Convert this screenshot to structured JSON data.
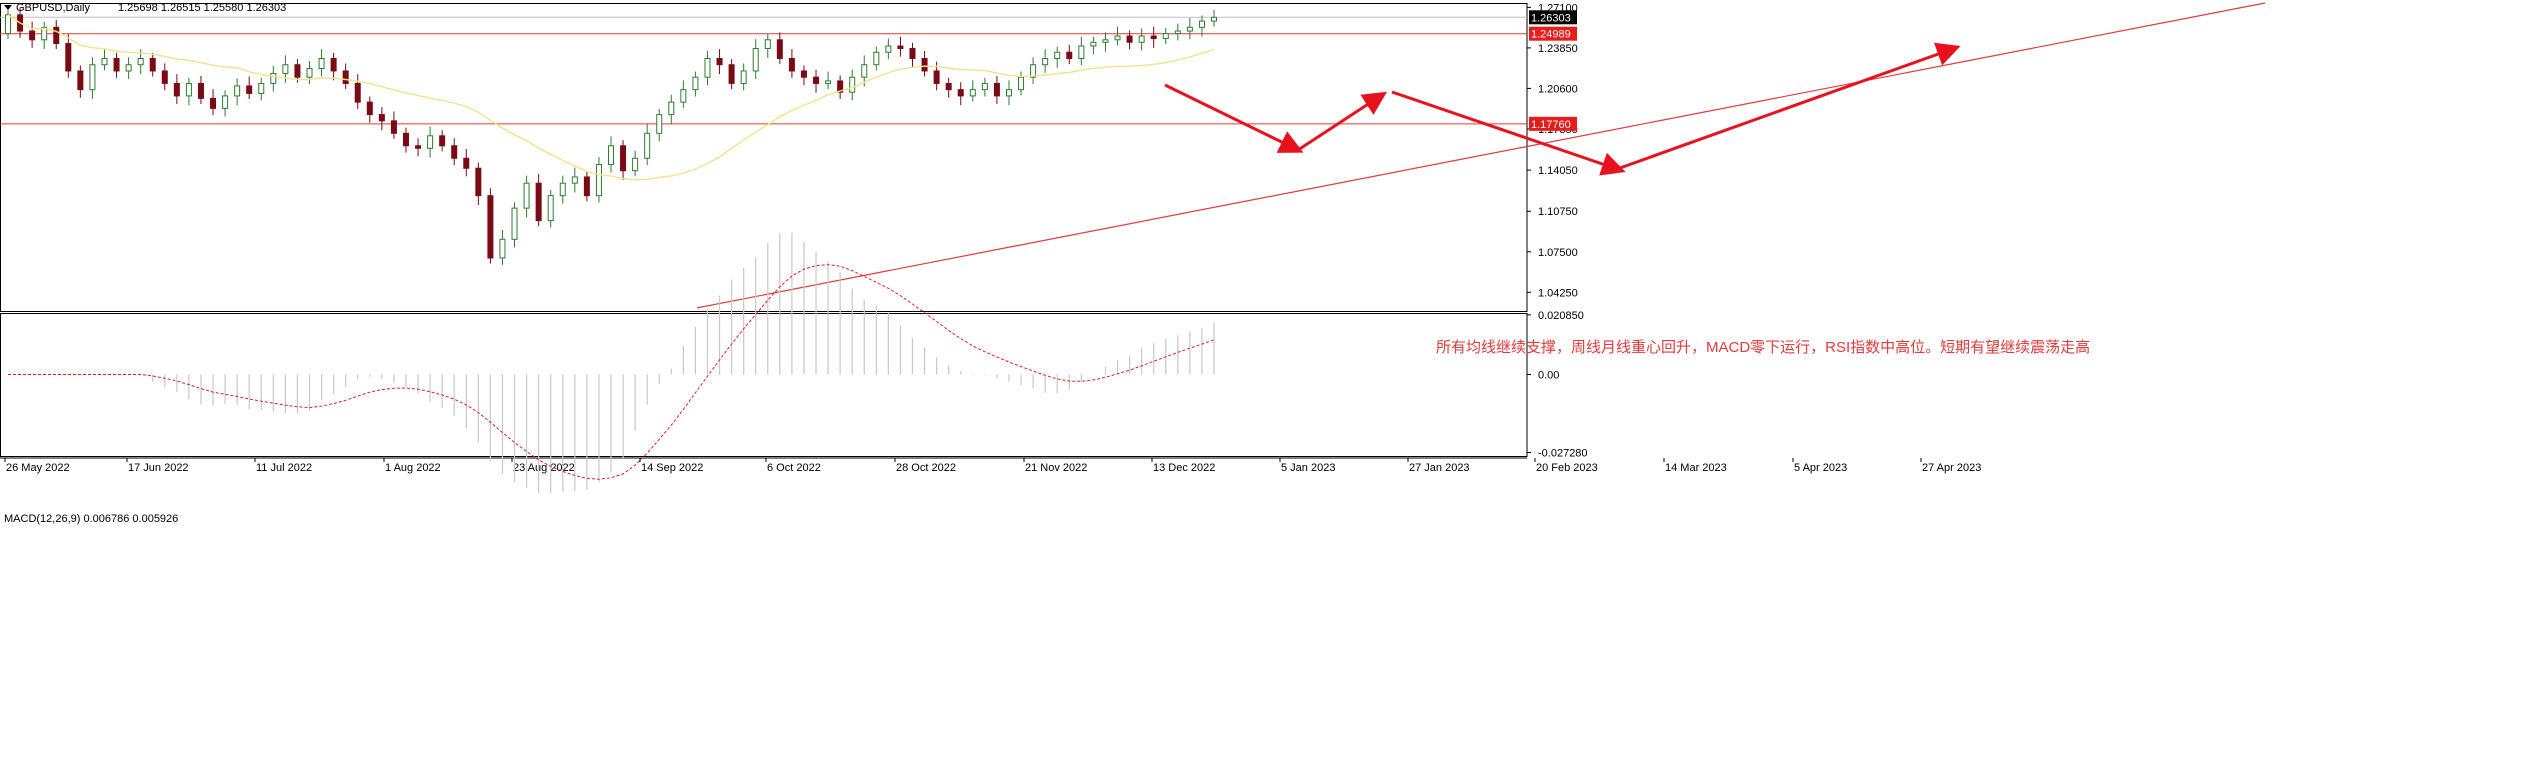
{
  "header": {
    "symbol_label": "GBPUSD,Daily",
    "ohlc": "1.25698 1.26515 1.25580 1.26303"
  },
  "macd_header": {
    "label": "MACD(12,26,9) 0.006786 0.005926"
  },
  "annotation_text": "所有均线继续支撑，周线月线重心回升，MACD零下运行，RSI指数中高位。短期有望继续震荡走高",
  "colors": {
    "bull": "#2e7d32",
    "bear": "#7a0a14",
    "ma": "#f2e38a",
    "level": "#e23b3b",
    "arrow": "#e8121f",
    "macd_hist": "#c8c8c8",
    "macd_signal": "#e02020",
    "current_price_bg": "#000000",
    "level_tag_bg": "#e81c1c"
  },
  "chart_data": [
    {
      "type": "candlestick",
      "title": "GBPUSD,Daily",
      "ylim": [
        1.0275,
        1.2745
      ],
      "y_ticks": [
        "1.27100",
        "1.23850",
        "1.20600",
        "1.17350",
        "1.14050",
        "1.10750",
        "1.07500",
        "1.04250"
      ],
      "y_tick_values": [
        1.271,
        1.2385,
        1.206,
        1.1735,
        1.1405,
        1.1075,
        1.075,
        1.0425
      ],
      "x_ticks": [
        "26 May 2022",
        "17 Jun 2022",
        "11 Jul 2022",
        "1 Aug 2022",
        "23 Aug 2022",
        "14 Sep 2022",
        "6 Oct 2022",
        "28 Oct 2022",
        "21 Nov 2022",
        "13 Dec 2022",
        "5 Jan 2023",
        "27 Jan 2023",
        "20 Feb 2023",
        "14 Mar 2023",
        "5 Apr 2023",
        "27 Apr 2023"
      ],
      "series": [
        {
          "kind": "close_path",
          "values": [
            [
              1.25,
              1.265
            ],
            [
              1.265,
              1.252
            ],
            [
              1.252,
              1.245
            ],
            [
              1.245,
              1.255
            ],
            [
              1.255,
              1.242
            ],
            [
              1.242,
              1.22
            ],
            [
              1.22,
              1.205
            ],
            [
              1.205,
              1.225
            ],
            [
              1.225,
              1.23
            ],
            [
              1.23,
              1.22
            ],
            [
              1.22,
              1.225
            ],
            [
              1.225,
              1.23
            ],
            [
              1.23,
              1.22
            ],
            [
              1.22,
              1.21
            ],
            [
              1.21,
              1.2
            ],
            [
              1.2,
              1.21
            ],
            [
              1.21,
              1.198
            ],
            [
              1.198,
              1.19
            ],
            [
              1.19,
              1.2
            ],
            [
              1.2,
              1.208
            ],
            [
              1.208,
              1.202
            ],
            [
              1.202,
              1.21
            ],
            [
              1.21,
              1.218
            ],
            [
              1.218,
              1.225
            ],
            [
              1.225,
              1.215
            ],
            [
              1.215,
              1.222
            ],
            [
              1.222,
              1.23
            ],
            [
              1.23,
              1.22
            ],
            [
              1.22,
              1.21
            ],
            [
              1.21,
              1.195
            ],
            [
              1.195,
              1.185
            ],
            [
              1.185,
              1.18
            ],
            [
              1.18,
              1.17
            ],
            [
              1.17,
              1.16
            ],
            [
              1.16,
              1.158
            ],
            [
              1.158,
              1.168
            ],
            [
              1.168,
              1.16
            ],
            [
              1.16,
              1.15
            ],
            [
              1.15,
              1.142
            ],
            [
              1.142,
              1.12
            ],
            [
              1.12,
              1.07
            ],
            [
              1.07,
              1.085
            ],
            [
              1.085,
              1.11
            ],
            [
              1.11,
              1.13
            ],
            [
              1.13,
              1.1
            ],
            [
              1.1,
              1.12
            ],
            [
              1.12,
              1.13
            ],
            [
              1.13,
              1.135
            ],
            [
              1.135,
              1.12
            ],
            [
              1.12,
              1.145
            ],
            [
              1.145,
              1.16
            ],
            [
              1.16,
              1.14
            ],
            [
              1.14,
              1.15
            ],
            [
              1.15,
              1.17
            ],
            [
              1.17,
              1.185
            ],
            [
              1.185,
              1.195
            ],
            [
              1.195,
              1.205
            ],
            [
              1.205,
              1.215
            ],
            [
              1.215,
              1.23
            ],
            [
              1.23,
              1.225
            ],
            [
              1.225,
              1.21
            ],
            [
              1.21,
              1.22
            ],
            [
              1.22,
              1.238
            ],
            [
              1.238,
              1.245
            ],
            [
              1.245,
              1.23
            ],
            [
              1.23,
              1.22
            ],
            [
              1.22,
              1.215
            ],
            [
              1.215,
              1.21
            ],
            [
              1.21,
              1.212
            ],
            [
              1.212,
              1.203
            ],
            [
              1.203,
              1.215
            ],
            [
              1.215,
              1.225
            ],
            [
              1.225,
              1.235
            ],
            [
              1.235,
              1.24
            ],
            [
              1.24,
              1.238
            ],
            [
              1.238,
              1.23
            ],
            [
              1.23,
              1.22
            ],
            [
              1.22,
              1.21
            ],
            [
              1.21,
              1.205
            ],
            [
              1.205,
              1.2
            ],
            [
              1.2,
              1.205
            ],
            [
              1.205,
              1.21
            ],
            [
              1.21,
              1.2
            ],
            [
              1.2,
              1.205
            ],
            [
              1.205,
              1.215
            ],
            [
              1.215,
              1.225
            ],
            [
              1.225,
              1.23
            ],
            [
              1.23,
              1.235
            ],
            [
              1.235,
              1.23
            ],
            [
              1.23,
              1.24
            ],
            [
              1.24,
              1.243
            ],
            [
              1.243,
              1.245
            ],
            [
              1.245,
              1.248
            ],
            [
              1.248,
              1.243
            ],
            [
              1.243,
              1.248
            ],
            [
              1.248,
              1.246
            ],
            [
              1.246,
              1.25
            ],
            [
              1.25,
              1.252
            ],
            [
              1.252,
              1.255
            ],
            [
              1.255,
              1.26
            ],
            [
              1.26,
              1.263
            ]
          ]
        }
      ],
      "moving_average": {
        "name": "",
        "color_key": "ma"
      },
      "horizontal_levels": [
        {
          "value": 1.24989,
          "label": "1.24989"
        },
        {
          "value": 1.1776,
          "label": "1.17760"
        }
      ],
      "current_price": {
        "value": 1.26303,
        "label": "1.26303"
      },
      "trendline": {
        "from": [
          "14 Sep 2022",
          1.03
        ],
        "to": [
          "27 Apr 2023",
          1.25
        ]
      }
    },
    {
      "type": "macd",
      "title": "MACD(12,26,9) 0.006786 0.005926",
      "ylim": [
        -0.0285,
        0.0215
      ],
      "y_ticks": [
        "0.020850",
        "0.00",
        "-0.027280"
      ],
      "y_tick_values": [
        0.02085,
        0.0,
        -0.02728
      ]
    }
  ]
}
